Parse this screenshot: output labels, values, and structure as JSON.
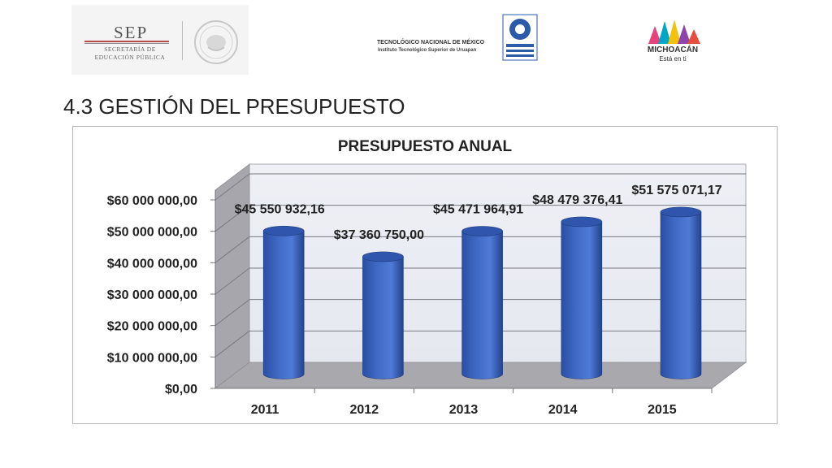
{
  "header": {
    "sep": {
      "title": "SEP",
      "subtitle_line1": "SECRETARÍA DE",
      "subtitle_line2": "EDUCACIÓN PÚBLICA"
    },
    "tec": {
      "title": "TECNOLÓGICO NACIONAL DE MÉXICO",
      "subtitle": "Instituto Tecnológico Superior de Uruapan"
    },
    "michoacan": {
      "name": "MICHOACÁN",
      "tagline": "Está en ti"
    }
  },
  "slide": {
    "title": "4.3 GESTIÓN DEL PRESUPUESTO"
  },
  "colors": {
    "bar": "#3f69c4",
    "bar_top": "#2f55ad",
    "wall": "#e6e8f0",
    "floor": "#a9a9ad",
    "side": "#a6a6ac"
  },
  "chart_data": {
    "type": "bar",
    "title": "PRESUPUESTO ANUAL",
    "xlabel": "",
    "ylabel": "",
    "categories": [
      "2011",
      "2012",
      "2013",
      "2014",
      "2015"
    ],
    "values": [
      45550932.16,
      37360750.0,
      45471964.91,
      48479376.41,
      51575071.17
    ],
    "data_labels": [
      "$45 550 932,16",
      "$37 360 750,00",
      "$45 471 964,91",
      "$48 479 376,41",
      "$51 575 071,17"
    ],
    "ylim": [
      0,
      60000000
    ],
    "y_ticks": [
      0,
      10000000,
      20000000,
      30000000,
      40000000,
      50000000,
      60000000
    ],
    "y_tick_labels": [
      "$0,00",
      "$10 000 000,00",
      "$20 000 000,00",
      "$30 000 000,00",
      "$40 000 000,00",
      "$50 000 000,00",
      "$60 000 000,00"
    ],
    "grid": true,
    "legend": "none",
    "style": "3d-cylinder"
  }
}
